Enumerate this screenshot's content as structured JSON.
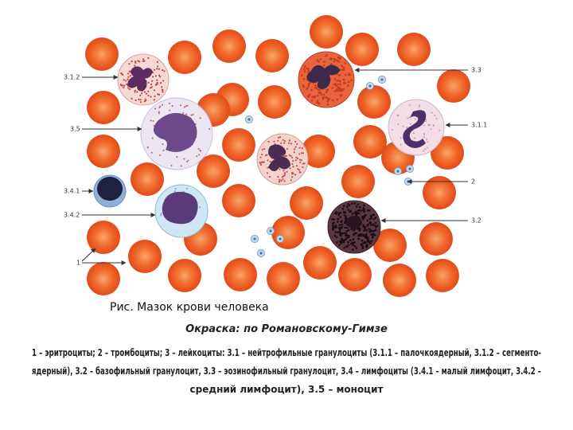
{
  "labels": [
    "3.1.2",
    "3.5",
    "3.4.1",
    "3.4.2",
    "1",
    "3.3",
    "3.1.1",
    "2",
    "3.2"
  ],
  "caption": "Рис. Мазок крови человека",
  "stain": "Окраска: по Романовскому-Гимзе",
  "legend": [
    "1 – эритроциты; 2 – тромбоциты; 3 – лейкоциты: 3.1 – нейтрофильные гранулоциты (3.1.1 – палочкоядерный, 3.1.2 – сегменто-",
    "ядерный), 3.2 – базофильный гранулоцит, 3.3 – эозинофильный гранулоцит, 3.4 – лимфоциты (3.4.1 – малый лимфоцит, 3.4.2 –",
    "средний лимфоцит), 3.5 – моноцит"
  ]
}
